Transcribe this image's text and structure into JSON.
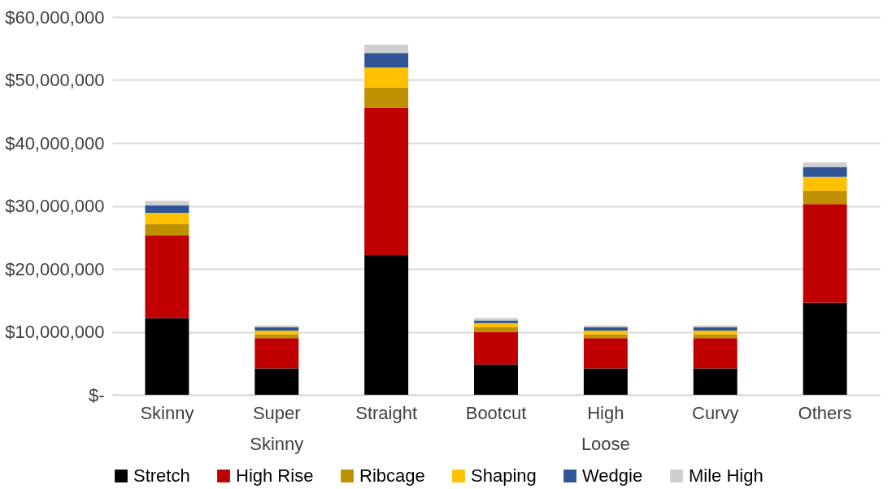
{
  "chart_data": {
    "type": "bar",
    "stacked": true,
    "categories": [
      "Skinny",
      "Super Skinny",
      "Straight",
      "Bootcut",
      "High Loose",
      "Curvy",
      "Others"
    ],
    "series": [
      {
        "name": "Stretch",
        "color": "#000000",
        "values": [
          12200000,
          4200000,
          22200000,
          4800000,
          4200000,
          4200000,
          14600000
        ]
      },
      {
        "name": "High Rise",
        "color": "#c00000",
        "values": [
          13100000,
          4800000,
          23400000,
          5200000,
          4800000,
          4800000,
          15700000
        ]
      },
      {
        "name": "Ribcage",
        "color": "#bf9000",
        "values": [
          1800000,
          600000,
          3200000,
          700000,
          600000,
          600000,
          2100000
        ]
      },
      {
        "name": "Shaping",
        "color": "#ffc000",
        "values": [
          1800000,
          600000,
          3200000,
          700000,
          600000,
          600000,
          2200000
        ]
      },
      {
        "name": "Wedgie",
        "color": "#2f5597",
        "values": [
          1200000,
          500000,
          2300000,
          400000,
          500000,
          500000,
          1600000
        ]
      },
      {
        "name": "Mile High",
        "color": "#d0cece",
        "values": [
          700000,
          300000,
          1300000,
          400000,
          300000,
          300000,
          700000
        ]
      }
    ],
    "ylim": [
      0,
      60000000
    ],
    "yticks": [
      {
        "value": 0,
        "label": "$-"
      },
      {
        "value": 10000000,
        "label": "$10,000,000"
      },
      {
        "value": 20000000,
        "label": "$20,000,000"
      },
      {
        "value": 30000000,
        "label": "$30,000,000"
      },
      {
        "value": 40000000,
        "label": "$40,000,000"
      },
      {
        "value": 50000000,
        "label": "$50,000,000"
      },
      {
        "value": 60000000,
        "label": "$60,000,000"
      }
    ],
    "grid": "y",
    "legend": "bottom"
  }
}
